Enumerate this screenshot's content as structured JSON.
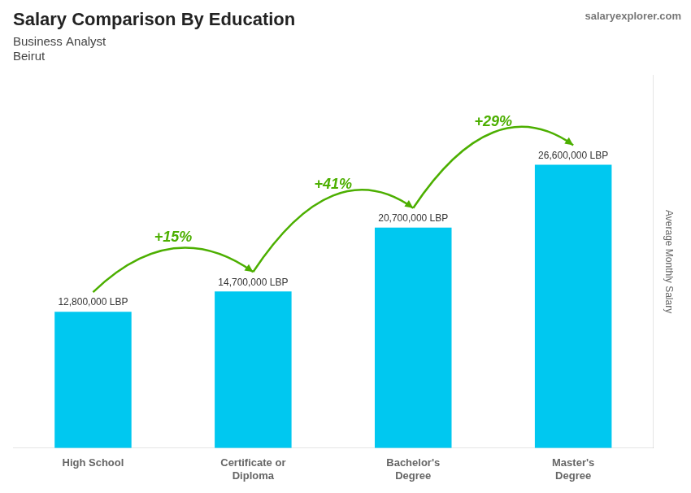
{
  "chart_data": {
    "type": "bar",
    "title": "Salary Comparison By Education",
    "subtitle": [
      "Business Analyst",
      "Beirut"
    ],
    "watermark": "salaryexplorer.com",
    "ylabel": "Average Monthly Salary",
    "categories": [
      "High School",
      "Certificate or\nDiploma",
      "Bachelor's\nDegree",
      "Master's\nDegree"
    ],
    "values": [
      12800000,
      14700000,
      20700000,
      26600000
    ],
    "value_labels": [
      "12,800,000 LBP",
      "14,700,000 LBP",
      "20,700,000 LBP",
      "26,600,000 LBP"
    ],
    "data_labels": true,
    "annotations": [
      "+15%",
      "+41%",
      "+29%"
    ],
    "color": "#00c8f0",
    "ylim": [
      0,
      35000000
    ],
    "grid": false,
    "tick_labels": "x"
  }
}
